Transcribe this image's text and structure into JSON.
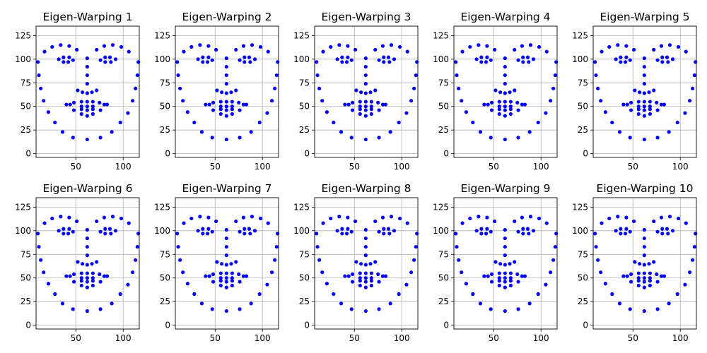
{
  "chart_data": [
    {
      "type": "scatter",
      "title": "Eigen-Warping 1",
      "xlim": [
        8,
        117
      ],
      "ylim": [
        -4,
        135
      ],
      "x_ticks": [
        50,
        100
      ],
      "y_ticks": [
        0,
        25,
        50,
        75,
        100,
        125
      ],
      "grid": true,
      "variant": 0,
      "color": "#0000ff"
    },
    {
      "type": "scatter",
      "title": "Eigen-Warping 2",
      "xlim": [
        8,
        117
      ],
      "ylim": [
        -4,
        135
      ],
      "x_ticks": [
        50,
        100
      ],
      "y_ticks": [
        0,
        25,
        50,
        75,
        100,
        125
      ],
      "grid": true,
      "variant": 1,
      "color": "#0000ff"
    },
    {
      "type": "scatter",
      "title": "Eigen-Warping 3",
      "xlim": [
        8,
        117
      ],
      "ylim": [
        -4,
        135
      ],
      "x_ticks": [
        50,
        100
      ],
      "y_ticks": [
        0,
        25,
        50,
        75,
        100,
        125
      ],
      "grid": true,
      "variant": 2,
      "color": "#0000ff"
    },
    {
      "type": "scatter",
      "title": "Eigen-Warping 4",
      "xlim": [
        8,
        117
      ],
      "ylim": [
        -4,
        135
      ],
      "x_ticks": [
        50,
        100
      ],
      "y_ticks": [
        0,
        25,
        50,
        75,
        100,
        125
      ],
      "grid": true,
      "variant": 3,
      "color": "#0000ff"
    },
    {
      "type": "scatter",
      "title": "Eigen-Warping 5",
      "xlim": [
        8,
        117
      ],
      "ylim": [
        -4,
        135
      ],
      "x_ticks": [
        50,
        100
      ],
      "y_ticks": [
        0,
        25,
        50,
        75,
        100,
        125
      ],
      "grid": true,
      "variant": 4,
      "color": "#0000ff"
    },
    {
      "type": "scatter",
      "title": "Eigen-Warping 6",
      "xlim": [
        8,
        117
      ],
      "ylim": [
        -4,
        135
      ],
      "x_ticks": [
        50,
        100
      ],
      "y_ticks": [
        0,
        25,
        50,
        75,
        100,
        125
      ],
      "grid": true,
      "variant": 5,
      "color": "#0000ff"
    },
    {
      "type": "scatter",
      "title": "Eigen-Warping 7",
      "xlim": [
        8,
        117
      ],
      "ylim": [
        -4,
        135
      ],
      "x_ticks": [
        50,
        100
      ],
      "y_ticks": [
        0,
        25,
        50,
        75,
        100,
        125
      ],
      "grid": true,
      "variant": 6,
      "color": "#0000ff"
    },
    {
      "type": "scatter",
      "title": "Eigen-Warping 8",
      "xlim": [
        8,
        117
      ],
      "ylim": [
        -4,
        135
      ],
      "x_ticks": [
        50,
        100
      ],
      "y_ticks": [
        0,
        25,
        50,
        75,
        100,
        125
      ],
      "grid": true,
      "variant": 7,
      "color": "#0000ff"
    },
    {
      "type": "scatter",
      "title": "Eigen-Warping 9",
      "xlim": [
        8,
        117
      ],
      "ylim": [
        -4,
        135
      ],
      "x_ticks": [
        50,
        100
      ],
      "y_ticks": [
        0,
        25,
        50,
        75,
        100,
        125
      ],
      "grid": true,
      "variant": 8,
      "color": "#0000ff"
    },
    {
      "type": "scatter",
      "title": "Eigen-Warping 10",
      "xlim": [
        8,
        117
      ],
      "ylim": [
        -4,
        135
      ],
      "x_ticks": [
        50,
        100
      ],
      "y_ticks": [
        0,
        25,
        50,
        75,
        100,
        125
      ],
      "grid": true,
      "variant": 9,
      "color": "#0000ff"
    }
  ],
  "base_points": [
    [
      10,
      97
    ],
    [
      11,
      83
    ],
    [
      13,
      69
    ],
    [
      16,
      56
    ],
    [
      21,
      44
    ],
    [
      28,
      33
    ],
    [
      36,
      23
    ],
    [
      47,
      17
    ],
    [
      62,
      15
    ],
    [
      76,
      17
    ],
    [
      88,
      23
    ],
    [
      97,
      33
    ],
    [
      105,
      43
    ],
    [
      110,
      56
    ],
    [
      113,
      69
    ],
    [
      115,
      83
    ],
    [
      116,
      97
    ],
    [
      17,
      108
    ],
    [
      25,
      113
    ],
    [
      34,
      115
    ],
    [
      43,
      114
    ],
    [
      51,
      110
    ],
    [
      72,
      110
    ],
    [
      80,
      114
    ],
    [
      89,
      115
    ],
    [
      98,
      113
    ],
    [
      106,
      108
    ],
    [
      62,
      101
    ],
    [
      62,
      92
    ],
    [
      62,
      83
    ],
    [
      62,
      74
    ],
    [
      52,
      67
    ],
    [
      57,
      65
    ],
    [
      62,
      64
    ],
    [
      67,
      65
    ],
    [
      72,
      67
    ],
    [
      32,
      100
    ],
    [
      37,
      102
    ],
    [
      43,
      102
    ],
    [
      47,
      99
    ],
    [
      42,
      97
    ],
    [
      37,
      97
    ],
    [
      76,
      99
    ],
    [
      81,
      102
    ],
    [
      86,
      102
    ],
    [
      92,
      100
    ],
    [
      87,
      97
    ],
    [
      81,
      97
    ],
    [
      40,
      52
    ],
    [
      48,
      54
    ],
    [
      56,
      55
    ],
    [
      62,
      55
    ],
    [
      68,
      55
    ],
    [
      75,
      54
    ],
    [
      83,
      52
    ],
    [
      76,
      46
    ],
    [
      68,
      42
    ],
    [
      62,
      40
    ],
    [
      56,
      42
    ],
    [
      48,
      46
    ],
    [
      44,
      52
    ],
    [
      56,
      50
    ],
    [
      62,
      50
    ],
    [
      68,
      50
    ],
    [
      80,
      52
    ],
    [
      68,
      47
    ],
    [
      62,
      46
    ],
    [
      56,
      47
    ]
  ],
  "variant_shifts": [
    [
      0,
      0
    ],
    [
      0,
      0
    ],
    [
      0,
      0
    ],
    [
      0,
      0
    ],
    [
      0,
      0
    ],
    [
      0,
      0
    ],
    [
      0,
      0
    ],
    [
      0,
      0
    ],
    [
      0,
      0
    ],
    [
      0,
      0
    ]
  ]
}
